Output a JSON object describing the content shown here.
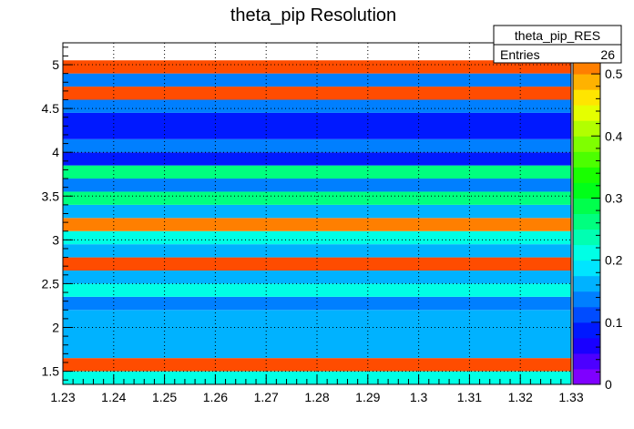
{
  "chart_data": {
    "type": "heatmap",
    "title": "theta_pip Resolution",
    "xlabel": "",
    "ylabel": "",
    "xlim": [
      1.23,
      1.33
    ],
    "ylim": [
      1.35,
      5.25
    ],
    "x_ticks": [
      "1.23",
      "1.24",
      "1.25",
      "1.26",
      "1.27",
      "1.28",
      "1.29",
      "1.3",
      "1.31",
      "1.32",
      "1.33"
    ],
    "y_ticks": [
      "1.5",
      "2",
      "2.5",
      "3",
      "3.5",
      "4",
      "4.5",
      "5"
    ],
    "grid": true,
    "bins": [
      {
        "y0": 1.35,
        "y1": 1.5,
        "z": 0.22
      },
      {
        "y0": 1.5,
        "y1": 1.65,
        "z": 0.54
      },
      {
        "y0": 1.65,
        "y1": 2.2,
        "z": 0.15
      },
      {
        "y0": 2.2,
        "y1": 2.35,
        "z": 0.13
      },
      {
        "y0": 2.35,
        "y1": 2.5,
        "z": 0.2
      },
      {
        "y0": 2.5,
        "y1": 2.65,
        "z": 0.15
      },
      {
        "y0": 2.65,
        "y1": 2.8,
        "z": 0.54
      },
      {
        "y0": 2.8,
        "y1": 2.95,
        "z": 0.15
      },
      {
        "y0": 2.95,
        "y1": 3.1,
        "z": 0.2
      },
      {
        "y0": 3.1,
        "y1": 3.25,
        "z": 0.51
      },
      {
        "y0": 3.25,
        "y1": 3.4,
        "z": 0.15
      },
      {
        "y0": 3.4,
        "y1": 3.55,
        "z": 0.27
      },
      {
        "y0": 3.55,
        "y1": 3.7,
        "z": 0.13
      },
      {
        "y0": 3.7,
        "y1": 3.85,
        "z": 0.27
      },
      {
        "y0": 3.85,
        "y1": 4.0,
        "z": 0.08
      },
      {
        "y0": 4.0,
        "y1": 4.15,
        "z": 0.13
      },
      {
        "y0": 4.15,
        "y1": 4.45,
        "z": 0.08
      },
      {
        "y0": 4.45,
        "y1": 4.6,
        "z": 0.13
      },
      {
        "y0": 4.6,
        "y1": 4.75,
        "z": 0.54
      },
      {
        "y0": 4.75,
        "y1": 4.9,
        "z": 0.13
      },
      {
        "y0": 4.9,
        "y1": 5.05,
        "z": 0.54
      },
      {
        "y0": 5.05,
        "y1": 5.25,
        "z": 0
      }
    ],
    "z_range": [
      0,
      0.55
    ],
    "z_ticks": [
      "0",
      "0.1",
      "0.2",
      "0.3",
      "0.4",
      "0.5"
    ],
    "palette": [
      "#7f00ff",
      "#4c00ff",
      "#1900ff",
      "#0019ff",
      "#004cff",
      "#007fff",
      "#00b2ff",
      "#00e5ff",
      "#00ffe5",
      "#00ffb2",
      "#00ff7f",
      "#00ff4c",
      "#00ff19",
      "#19ff00",
      "#4cff00",
      "#7fff00",
      "#b2ff00",
      "#e5ff00",
      "#ffe500",
      "#ffb200",
      "#ff7f00",
      "#ff4c00"
    ],
    "stats": {
      "name": "theta_pip_RES",
      "entries_label": "Entries",
      "entries_value": "26"
    }
  }
}
